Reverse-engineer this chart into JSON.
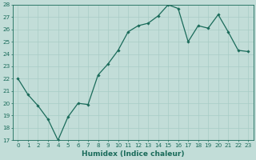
{
  "x": [
    0,
    1,
    2,
    3,
    4,
    5,
    6,
    7,
    8,
    9,
    10,
    11,
    12,
    13,
    14,
    15,
    16,
    17,
    18,
    19,
    20,
    21,
    22,
    23
  ],
  "y": [
    22.0,
    20.7,
    19.8,
    18.7,
    17.0,
    18.9,
    20.0,
    19.9,
    22.3,
    23.2,
    24.3,
    25.8,
    26.3,
    26.5,
    27.1,
    28.0,
    27.7,
    25.0,
    26.3,
    26.1,
    27.2,
    25.8,
    24.3,
    24.2
  ],
  "xlabel": "Humidex (Indice chaleur)",
  "ylim": [
    17,
    28
  ],
  "yticks": [
    17,
    18,
    19,
    20,
    21,
    22,
    23,
    24,
    25,
    26,
    27,
    28
  ],
  "xticks": [
    0,
    1,
    2,
    3,
    4,
    5,
    6,
    7,
    8,
    9,
    10,
    11,
    12,
    13,
    14,
    15,
    16,
    17,
    18,
    19,
    20,
    21,
    22,
    23
  ],
  "line_color": "#1a6b5a",
  "marker": "D",
  "marker_size": 1.8,
  "line_width": 0.9,
  "bg_color": "#c2ddd8",
  "grid_color": "#a8ccc6",
  "xlabel_fontsize": 6.5,
  "tick_fontsize": 5.2,
  "xlim": [
    -0.5,
    23.5
  ]
}
